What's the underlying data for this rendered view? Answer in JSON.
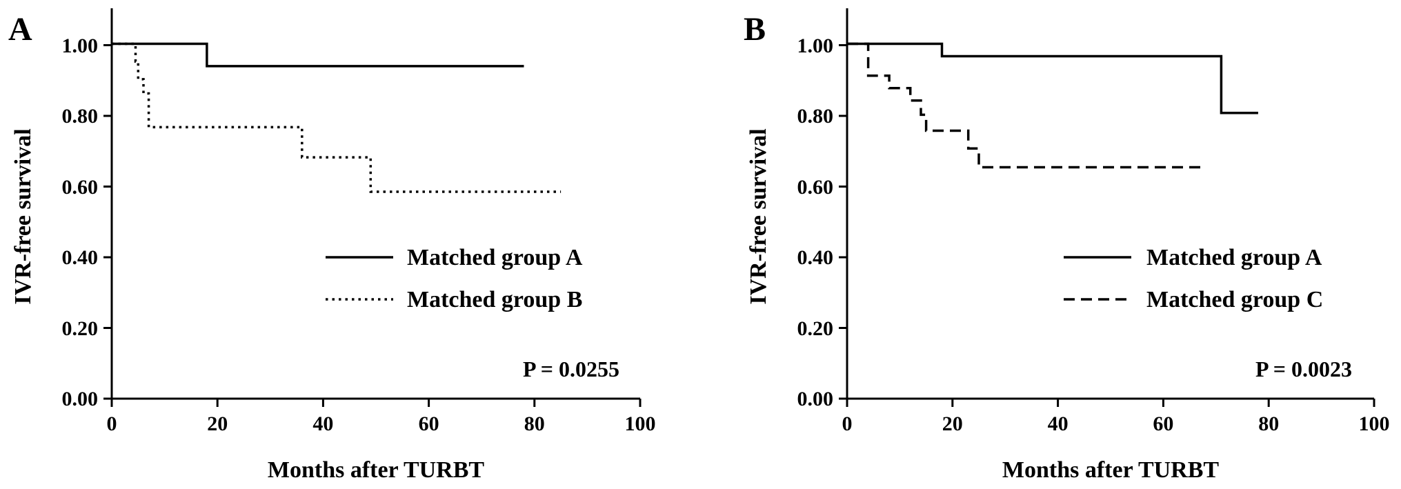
{
  "chart_data": [
    {
      "panel_label": "A",
      "type": "line",
      "step": true,
      "xlabel": "Months after TURBT",
      "ylabel": "IVR-free survival",
      "xlim": [
        0,
        100
      ],
      "ylim": [
        0,
        1.1
      ],
      "x_ticks": [
        0,
        20,
        40,
        60,
        80,
        100
      ],
      "x_tick_labels": [
        "0",
        "20",
        "40",
        "60",
        "80",
        "100"
      ],
      "y_ticks": [
        0,
        0.2,
        0.4,
        0.6,
        0.8,
        1.0
      ],
      "y_tick_labels": [
        "0.00",
        "0.20",
        "0.40",
        "0.60",
        "0.80",
        "1.00"
      ],
      "grid": false,
      "legend_position": "center-right",
      "annotation": "P = 0.0255",
      "series": [
        {
          "name": "Matched group A",
          "line_style": "solid",
          "x": [
            0,
            18,
            78
          ],
          "y": [
            1.0,
            0.937,
            0.937
          ]
        },
        {
          "name": "Matched group B",
          "line_style": "dotted",
          "x": [
            0,
            4.5,
            5,
            6,
            7,
            36,
            49,
            85
          ],
          "y": [
            1.0,
            0.95,
            0.9,
            0.86,
            0.765,
            0.68,
            0.583,
            0.583
          ]
        }
      ]
    },
    {
      "panel_label": "B",
      "type": "line",
      "step": true,
      "xlabel": "Months after TURBT",
      "ylabel": "IVR-free survival",
      "xlim": [
        0,
        100
      ],
      "ylim": [
        0,
        1.1
      ],
      "x_ticks": [
        0,
        20,
        40,
        60,
        80,
        100
      ],
      "x_tick_labels": [
        "0",
        "20",
        "40",
        "60",
        "80",
        "100"
      ],
      "y_ticks": [
        0,
        0.2,
        0.4,
        0.6,
        0.8,
        1.0
      ],
      "y_tick_labels": [
        "0.00",
        "0.20",
        "0.40",
        "0.60",
        "0.80",
        "1.00"
      ],
      "grid": false,
      "legend_position": "center-right",
      "annotation": "P = 0.0023",
      "series": [
        {
          "name": "Matched group A",
          "line_style": "solid",
          "x": [
            0,
            18,
            71,
            78
          ],
          "y": [
            1.0,
            0.965,
            0.805,
            0.805
          ]
        },
        {
          "name": "Matched group C",
          "line_style": "dashed",
          "x": [
            0,
            4,
            8,
            12,
            14,
            15,
            23,
            25,
            68
          ],
          "y": [
            1.0,
            0.91,
            0.875,
            0.84,
            0.8,
            0.755,
            0.705,
            0.652,
            0.652
          ]
        }
      ]
    }
  ]
}
